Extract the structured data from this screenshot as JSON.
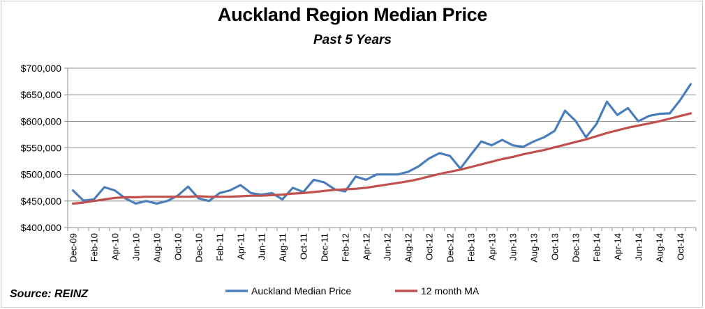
{
  "chart_data": {
    "type": "line",
    "title": "Auckland Region Median Price",
    "subtitle": "Past 5 Years",
    "source": "Source: REINZ",
    "ylim": [
      400000,
      700000
    ],
    "y_ticks": [
      "$400,000",
      "$450,000",
      "$500,000",
      "$550,000",
      "$600,000",
      "$650,000",
      "$700,000"
    ],
    "y_tick_values": [
      400000,
      450000,
      500000,
      550000,
      600000,
      650000,
      700000
    ],
    "grid": true,
    "legend_position": "bottom",
    "x_labels": [
      "Dec-09",
      "Feb-10",
      "Apr-10",
      "Jun-10",
      "Aug-10",
      "Oct-10",
      "Dec-10",
      "Feb-11",
      "Apr-11",
      "Jun-11",
      "Aug-11",
      "Oct-11",
      "Dec-11",
      "Feb-12",
      "Apr-12",
      "Jun-12",
      "Aug-12",
      "Oct-12",
      "Dec-12",
      "Feb-13",
      "Apr-13",
      "Jun-13",
      "Aug-13",
      "Oct-13",
      "Dec-13",
      "Feb-14",
      "Apr-14",
      "Jun-14",
      "Aug-14",
      "Oct-14"
    ],
    "x": [
      "Dec-09",
      "Jan-10",
      "Feb-10",
      "Mar-10",
      "Apr-10",
      "May-10",
      "Jun-10",
      "Jul-10",
      "Aug-10",
      "Sep-10",
      "Oct-10",
      "Nov-10",
      "Dec-10",
      "Jan-11",
      "Feb-11",
      "Mar-11",
      "Apr-11",
      "May-11",
      "Jun-11",
      "Jul-11",
      "Aug-11",
      "Sep-11",
      "Oct-11",
      "Nov-11",
      "Dec-11",
      "Jan-12",
      "Feb-12",
      "Mar-12",
      "Apr-12",
      "May-12",
      "Jun-12",
      "Jul-12",
      "Aug-12",
      "Sep-12",
      "Oct-12",
      "Nov-12",
      "Dec-12",
      "Jan-13",
      "Feb-13",
      "Mar-13",
      "Apr-13",
      "May-13",
      "Jun-13",
      "Jul-13",
      "Aug-13",
      "Sep-13",
      "Oct-13",
      "Nov-13",
      "Dec-13",
      "Jan-14",
      "Feb-14",
      "Mar-14",
      "Apr-14",
      "May-14",
      "Jun-14",
      "Jul-14",
      "Aug-14",
      "Sep-14",
      "Oct-14",
      "Nov-14"
    ],
    "series": [
      {
        "name": "Auckland Median Price",
        "color": "#4a7ebb",
        "values": [
          470000,
          451000,
          453000,
          476000,
          470000,
          455000,
          445000,
          450000,
          445000,
          450000,
          460000,
          477000,
          455000,
          450000,
          465000,
          470000,
          480000,
          465000,
          462000,
          465000,
          453000,
          475000,
          467000,
          490000,
          485000,
          472000,
          468000,
          496000,
          490000,
          500000,
          500000,
          500000,
          505000,
          515000,
          530000,
          540000,
          535000,
          511000,
          537000,
          562000,
          555000,
          565000,
          555000,
          552000,
          562000,
          570000,
          582000,
          620000,
          601000,
          570000,
          595000,
          637000,
          612000,
          625000,
          600000,
          610000,
          614000,
          615000,
          640000,
          670000
        ]
      },
      {
        "name": "12 month MA",
        "color": "#c0504d",
        "values": [
          445000,
          447000,
          450000,
          453000,
          456000,
          457000,
          457000,
          458000,
          458000,
          458000,
          458000,
          458000,
          459000,
          458000,
          458000,
          458000,
          459000,
          460000,
          460000,
          461000,
          462000,
          464000,
          465000,
          467000,
          469000,
          471000,
          472000,
          473000,
          475000,
          478000,
          481000,
          484000,
          487000,
          491000,
          496000,
          501000,
          505000,
          509000,
          514000,
          519000,
          524000,
          529000,
          533000,
          538000,
          542000,
          546000,
          551000,
          556000,
          561000,
          566000,
          572000,
          578000,
          583000,
          588000,
          592000,
          596000,
          600000,
          605000,
          610000,
          615000
        ]
      }
    ]
  }
}
